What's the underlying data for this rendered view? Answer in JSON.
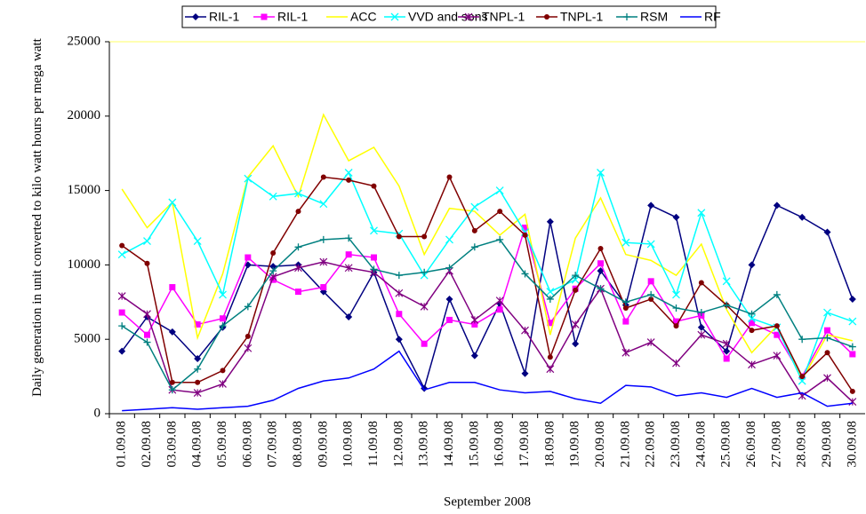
{
  "chart_data": {
    "type": "line",
    "ylabel": "Daily generation in unit converted to kilo watt hours per mega watt",
    "xlabel": "September 2008",
    "categories": [
      "01.09.08",
      "02.09.08",
      "03.09.08",
      "04.09.08",
      "05.09.08",
      "06.09.08",
      "07.09.08",
      "08.09.08",
      "09.09.08",
      "10.09.08",
      "11.09.08",
      "12.09.08",
      "13.09.08",
      "14.09.08",
      "15.09.08",
      "16.09.08",
      "17.09.08",
      "18.09.08",
      "19.09.08",
      "20.09.08",
      "21.09.08",
      "22.09.08",
      "23.09.08",
      "24.09.08",
      "25.09.08",
      "26.09.08",
      "27.09.08",
      "28.09.08",
      "29.09.08",
      "30.09.08"
    ],
    "ylim": [
      0,
      25000
    ],
    "yticks": [
      0,
      5000,
      10000,
      15000,
      20000,
      25000
    ],
    "legend": "top",
    "series": [
      {
        "name": "RIL-1",
        "color": "#000080",
        "marker": "diamond",
        "values": [
          4200,
          6500,
          5500,
          3700,
          5800,
          10000,
          9900,
          10000,
          8200,
          6500,
          9500,
          5000,
          1700,
          7700,
          3900,
          7400,
          2700,
          12900,
          4700,
          9600,
          7300,
          14000,
          13200,
          5800,
          4200,
          10000,
          14000,
          13200,
          12200,
          7700
        ]
      },
      {
        "name": "RIL-1",
        "color": "#ff00ff",
        "marker": "square",
        "values": [
          6800,
          5300,
          8500,
          6000,
          6400,
          10500,
          9000,
          8200,
          8500,
          10700,
          10500,
          6700,
          4700,
          6300,
          6000,
          7000,
          12500,
          6100,
          8400,
          10100,
          6200,
          8900,
          6200,
          6600,
          3700,
          6100,
          5300,
          2500,
          5600,
          4000
        ]
      },
      {
        "name": "ACC",
        "color": "#ffff00",
        "marker": "none",
        "values": [
          15100,
          12500,
          14200,
          5100,
          9400,
          15900,
          18000,
          14600,
          20100,
          17000,
          17900,
          15300,
          10700,
          13800,
          13600,
          12000,
          13400,
          5300,
          11800,
          14500,
          10700,
          10300,
          9300,
          11400,
          7000,
          4100,
          5900,
          2300,
          5300,
          4900
        ]
      },
      {
        "name": "VVD and sons",
        "color": "#00ffff",
        "marker": "x",
        "values": [
          10700,
          11600,
          14200,
          11600,
          8000,
          15800,
          14600,
          14800,
          14100,
          16200,
          12300,
          12100,
          9300,
          11700,
          13900,
          15000,
          12200,
          8200,
          9000,
          16200,
          11500,
          11400,
          8000,
          13500,
          8900,
          6400,
          5800,
          2200,
          6800,
          6200
        ]
      },
      {
        "name": "TNPL-1",
        "color": "#800080",
        "marker": "star",
        "values": [
          7900,
          6700,
          1600,
          1400,
          2000,
          4400,
          9200,
          9800,
          10200,
          9800,
          9500,
          8100,
          7200,
          9600,
          6300,
          7600,
          5600,
          3000,
          6000,
          8400,
          4100,
          4800,
          3400,
          5300,
          4700,
          3300,
          3900,
          1200,
          2400,
          800
        ]
      },
      {
        "name": "TNPL-1",
        "color": "#800000",
        "marker": "circle",
        "values": [
          11300,
          10100,
          2100,
          2100,
          2900,
          5200,
          10800,
          13600,
          15900,
          15700,
          15300,
          11900,
          11900,
          15900,
          12300,
          13600,
          12000,
          3800,
          8300,
          11100,
          7100,
          7700,
          5900,
          8800,
          7300,
          5600,
          5900,
          2500,
          4100,
          1500
        ]
      },
      {
        "name": "RSM",
        "color": "#008080",
        "marker": "plus",
        "values": [
          5900,
          4800,
          1600,
          3000,
          5900,
          7200,
          9600,
          11200,
          11700,
          11800,
          9700,
          9300,
          9500,
          9800,
          11200,
          11700,
          9400,
          7700,
          9300,
          8400,
          7500,
          8000,
          7100,
          6800,
          7300,
          6700,
          8000,
          5000,
          5100,
          4500
        ]
      },
      {
        "name": "RF",
        "color": "#0000ff",
        "marker": "none",
        "values": [
          200,
          300,
          400,
          300,
          400,
          500,
          900,
          1700,
          2200,
          2400,
          3000,
          4200,
          1600,
          2100,
          2100,
          1600,
          1400,
          1500,
          1000,
          700,
          1900,
          1800,
          1200,
          1400,
          1100,
          1700,
          1100,
          1400,
          500,
          700
        ]
      }
    ]
  }
}
